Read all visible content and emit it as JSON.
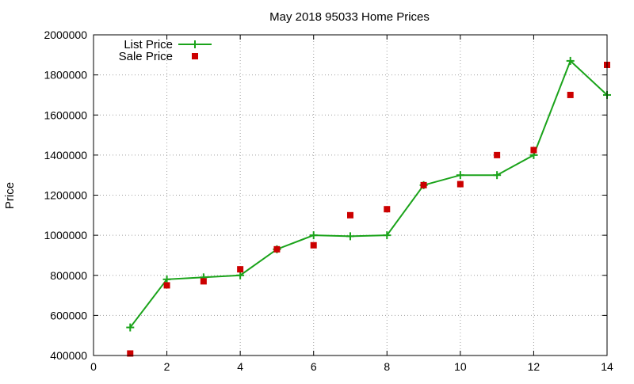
{
  "chart_data": {
    "type": "line",
    "title": "May 2018 95033 Home Prices",
    "xlabel": "",
    "ylabel": "Price",
    "xlim": [
      0,
      14
    ],
    "ylim": [
      400000,
      2000000
    ],
    "xticks": [
      0,
      2,
      4,
      6,
      8,
      10,
      12,
      14
    ],
    "yticks": [
      400000,
      600000,
      800000,
      1000000,
      1200000,
      1400000,
      1600000,
      1800000,
      2000000
    ],
    "grid": true,
    "legend_position": "top-left",
    "series": [
      {
        "name": "List Price",
        "style": "line-with-plus-markers",
        "color": "#1aa31a",
        "x": [
          1,
          2,
          3,
          4,
          5,
          6,
          7,
          8,
          9,
          10,
          11,
          12,
          13,
          14
        ],
        "y": [
          540000,
          780000,
          790000,
          800000,
          930000,
          1000000,
          995000,
          1000000,
          1250000,
          1300000,
          1300000,
          1400000,
          1870000,
          1700000
        ]
      },
      {
        "name": "Sale Price",
        "style": "square-markers",
        "color": "#cc0000",
        "x": [
          1,
          2,
          3,
          4,
          5,
          6,
          7,
          8,
          9,
          10,
          11,
          12,
          13,
          14
        ],
        "y": [
          410000,
          750000,
          770000,
          830000,
          930000,
          950000,
          1100000,
          1130000,
          1250000,
          1255000,
          1400000,
          1425000,
          1700000,
          1850000
        ]
      }
    ]
  }
}
